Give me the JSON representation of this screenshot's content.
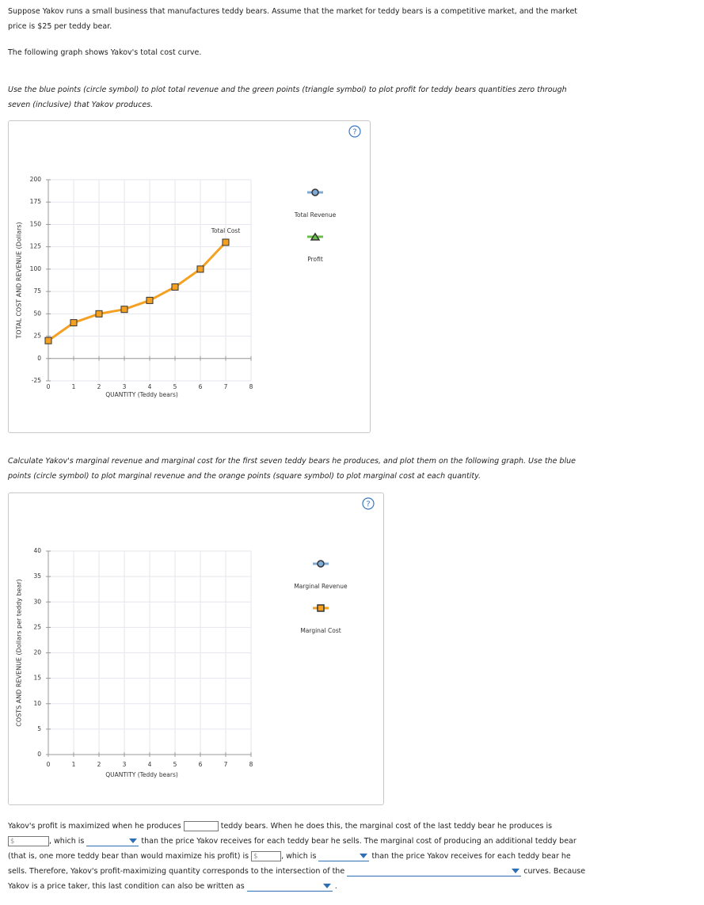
{
  "intro": {
    "paragraph_1": "Suppose Yakov runs a small business that manufactures teddy bears. Assume that the market for teddy bears is a competitive market, and the market price is $25 per teddy bear.",
    "paragraph_2": "The following graph shows Yakov's total cost curve.",
    "instruction_1": "Use the blue points (circle symbol) to plot total revenue and the green points (triangle symbol) to plot profit for teddy bears quantities zero through seven (inclusive) that Yakov produces.",
    "instruction_2": "Calculate Yakov's marginal revenue and marginal cost for the first seven teddy bears he produces, and plot them on the following graph. Use the blue points (circle symbol) to plot marginal revenue and the orange points (square symbol) to plot marginal cost at each quantity."
  },
  "help_icon": "?",
  "chart_data": [
    {
      "type": "line",
      "x_label": "QUANTITY (Teddy bears)",
      "y_label": "TOTAL COST AND REVENUE (Dollars)",
      "x": [
        0,
        1,
        2,
        3,
        4,
        5,
        6,
        7
      ],
      "series": [
        {
          "name": "Total Cost",
          "color": "#f5a020",
          "values": [
            20,
            40,
            50,
            55,
            65,
            80,
            100,
            130
          ]
        }
      ],
      "xlim": [
        0,
        8
      ],
      "xticks": [
        0,
        1,
        2,
        3,
        4,
        5,
        6,
        7,
        8
      ],
      "ylim": [
        -25,
        200
      ],
      "yticks": [
        -25,
        0,
        25,
        50,
        75,
        100,
        125,
        150,
        175,
        200
      ],
      "grid": true,
      "palette": [
        {
          "name": "Total Revenue",
          "marker": "circle",
          "color": "#7eaad6"
        },
        {
          "name": "Profit",
          "marker": "triangle",
          "color": "#6cc04a"
        }
      ]
    },
    {
      "type": "line",
      "x_label": "QUANTITY (Teddy bears)",
      "y_label": "COSTS AND REVENUE (Dollars per teddy bear)",
      "x": [],
      "series": [],
      "xlim": [
        0,
        8
      ],
      "xticks": [
        0,
        1,
        2,
        3,
        4,
        5,
        6,
        7,
        8
      ],
      "ylim": [
        0,
        40
      ],
      "yticks": [
        0,
        5,
        10,
        15,
        20,
        25,
        30,
        35,
        40
      ],
      "grid": true,
      "palette": [
        {
          "name": "Marginal Revenue",
          "marker": "circle",
          "color": "#7eaad6"
        },
        {
          "name": "Marginal Cost",
          "marker": "square",
          "color": "#f5a020"
        }
      ]
    }
  ],
  "question": {
    "currency": "$",
    "text_1": "Yakov's profit is maximized when he produces",
    "text_2": "teddy bears. When he does this, the marginal cost of the last teddy bear he produces is",
    "text_3": ", which is",
    "text_4": "than the price Yakov receives for each teddy bear he sells. The marginal cost of producing an additional teddy bear (that is, one more teddy bear than would maximize his profit) is",
    "text_5": ", which is",
    "text_6": "than the price Yakov receives for each teddy bear he sells. Therefore, Yakov's profit-maximizing quantity corresponds to the intersection of the",
    "text_7": "curves. Because Yakov is a price taker, this last condition can also be written as",
    "text_8": "."
  }
}
